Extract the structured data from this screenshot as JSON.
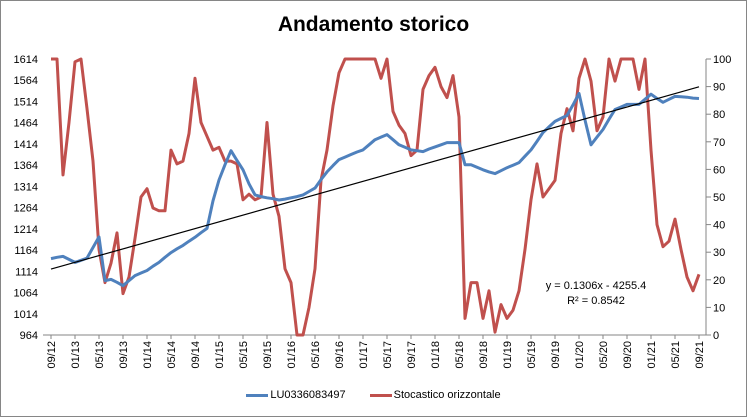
{
  "chart_data": {
    "type": "line",
    "title": "Andamento storico",
    "x": [
      "09/12",
      "10/12",
      "11/12",
      "12/12",
      "01/13",
      "02/13",
      "03/13",
      "04/13",
      "05/13",
      "06/13",
      "07/13",
      "08/13",
      "09/13",
      "10/13",
      "11/13",
      "12/13",
      "01/14",
      "02/14",
      "03/14",
      "04/14",
      "05/14",
      "06/14",
      "07/14",
      "08/14",
      "09/14",
      "10/14",
      "11/14",
      "12/14",
      "01/15",
      "02/15",
      "03/15",
      "04/15",
      "05/15",
      "06/15",
      "07/15",
      "08/15",
      "09/15",
      "10/15",
      "11/15",
      "12/15",
      "01/16",
      "02/16",
      "03/16",
      "04/16",
      "05/16",
      "06/16",
      "07/16",
      "08/16",
      "09/16",
      "10/16",
      "11/16",
      "12/16",
      "01/17",
      "02/17",
      "03/17",
      "04/17",
      "05/17",
      "06/17",
      "07/17",
      "08/17",
      "09/17",
      "10/17",
      "11/17",
      "12/17",
      "01/18",
      "02/18",
      "03/18",
      "04/18",
      "05/18",
      "06/18",
      "07/18",
      "08/18",
      "09/18",
      "10/18",
      "11/18",
      "12/18",
      "01/19",
      "02/19",
      "03/19",
      "04/19",
      "05/19",
      "06/19",
      "07/19",
      "08/19",
      "09/19",
      "10/19",
      "11/19",
      "12/19",
      "01/20",
      "02/20",
      "03/20",
      "04/20",
      "05/20",
      "06/20",
      "07/20",
      "08/20",
      "09/20",
      "10/20",
      "11/20",
      "12/20",
      "01/21",
      "02/21",
      "03/21",
      "04/21",
      "05/21",
      "06/21",
      "07/21",
      "08/21",
      "09/21"
    ],
    "x_tick_labels": [
      "09/12",
      "01/13",
      "05/13",
      "09/13",
      "01/14",
      "05/14",
      "09/14",
      "01/15",
      "05/15",
      "09/15",
      "01/16",
      "05/16",
      "09/16",
      "01/17",
      "05/17",
      "09/17",
      "01/18",
      "05/18",
      "09/18",
      "01/19",
      "05/19",
      "09/19",
      "01/20",
      "05/20",
      "09/20",
      "01/21",
      "05/21",
      "09/21"
    ],
    "y_left": {
      "min": 964,
      "max": 1614,
      "ticks": [
        1614,
        1564,
        1514,
        1464,
        1414,
        1364,
        1314,
        1264,
        1214,
        1164,
        1114,
        1064,
        1014,
        964
      ]
    },
    "y_right": {
      "min": 0,
      "max": 100,
      "ticks": [
        100,
        90,
        80,
        70,
        60,
        50,
        40,
        30,
        20,
        10,
        0
      ]
    },
    "grid": false,
    "legend_position": "bottom",
    "series": [
      {
        "name": "LU0336083497",
        "axis": "left",
        "color": "#4F81BD",
        "values": [
          1144,
          1147,
          1149,
          1142,
          1135,
          1140,
          1145,
          1170,
          1195,
          1092,
          1095,
          1088,
          1080,
          1092,
          1104,
          1110,
          1116,
          1126,
          1135,
          1147,
          1158,
          1167,
          1175,
          1185,
          1194,
          1205,
          1215,
          1280,
          1329,
          1365,
          1398,
          1375,
          1353,
          1320,
          1294,
          1290,
          1287,
          1285,
          1282,
          1284,
          1287,
          1290,
          1294,
          1302,
          1310,
          1330,
          1348,
          1363,
          1377,
          1383,
          1389,
          1395,
          1400,
          1412,
          1424,
          1430,
          1436,
          1424,
          1412,
          1406,
          1400,
          1398,
          1396,
          1402,
          1407,
          1412,
          1417,
          1417,
          1417,
          1365,
          1365,
          1359,
          1353,
          1348,
          1344,
          1351,
          1358,
          1364,
          1370,
          1385,
          1400,
          1420,
          1441,
          1454,
          1467,
          1474,
          1481,
          1506,
          1533,
          1470,
          1412,
          1430,
          1448,
          1472,
          1495,
          1501,
          1507,
          1507,
          1507,
          1519,
          1531,
          1521,
          1512,
          1519,
          1526,
          1525,
          1524,
          1522,
          1521
        ]
      },
      {
        "name": "Stocastico orizzontale",
        "axis": "right",
        "color": "#C0504D",
        "values": [
          100,
          100,
          58,
          77,
          99,
          100,
          82,
          63,
          31,
          19,
          26,
          37,
          15,
          21,
          35,
          50,
          53,
          46,
          45,
          45,
          67,
          62,
          63,
          73,
          93,
          77,
          72,
          67,
          68,
          63,
          63,
          62,
          49,
          51,
          49,
          50,
          77,
          51,
          43,
          24,
          19,
          0,
          0,
          10,
          24,
          56,
          67,
          83,
          95,
          100,
          100,
          100,
          100,
          100,
          100,
          93,
          100,
          81,
          76,
          73,
          65,
          67,
          89,
          94,
          97,
          90,
          86,
          94,
          79,
          6,
          19,
          19,
          6,
          16,
          1,
          11,
          6,
          9,
          16,
          31,
          49,
          62,
          50,
          53,
          56,
          73,
          82,
          74,
          93,
          100,
          92,
          74,
          79,
          100,
          92,
          100,
          100,
          100,
          89,
          100,
          67,
          40,
          32,
          34,
          42,
          31,
          21,
          16,
          22
        ]
      }
    ],
    "trendline": {
      "type": "linear",
      "series": "LU0336083497",
      "color": "#000000",
      "slope": 0.1306,
      "intercept": -4255.4,
      "equation_label": "y = 0.1306x - 4255.4",
      "r2_label": "R² = 0.8542"
    }
  }
}
